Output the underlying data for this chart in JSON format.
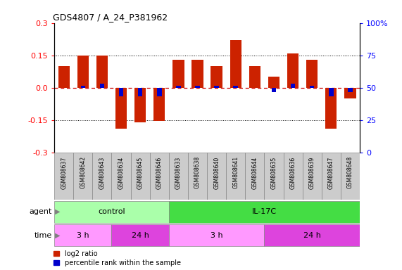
{
  "title": "GDS4807 / A_24_P381962",
  "samples": [
    "GSM808637",
    "GSM808642",
    "GSM808643",
    "GSM808634",
    "GSM808645",
    "GSM808646",
    "GSM808633",
    "GSM808638",
    "GSM808640",
    "GSM808641",
    "GSM808644",
    "GSM808635",
    "GSM808636",
    "GSM808639",
    "GSM808647",
    "GSM808648"
  ],
  "log2_ratio": [
    0.1,
    0.15,
    0.15,
    -0.19,
    -0.16,
    -0.155,
    0.13,
    0.13,
    0.1,
    0.22,
    0.1,
    0.05,
    0.16,
    0.13,
    -0.19,
    -0.05
  ],
  "pct_rank_offset": [
    0.0,
    0.01,
    0.02,
    -0.04,
    -0.04,
    -0.04,
    0.01,
    0.01,
    0.01,
    0.01,
    0.0,
    -0.02,
    0.02,
    0.01,
    -0.04,
    -0.02
  ],
  "agent_groups": [
    {
      "label": "control",
      "start": 0,
      "end": 6,
      "color": "#AAFFAA"
    },
    {
      "label": "IL-17C",
      "start": 6,
      "end": 16,
      "color": "#44DD44"
    }
  ],
  "time_groups": [
    {
      "label": "3 h",
      "start": 0,
      "end": 3,
      "color": "#FF99FF"
    },
    {
      "label": "24 h",
      "start": 3,
      "end": 6,
      "color": "#DD44DD"
    },
    {
      "label": "3 h",
      "start": 6,
      "end": 11,
      "color": "#FF99FF"
    },
    {
      "label": "24 h",
      "start": 11,
      "end": 16,
      "color": "#DD44DD"
    }
  ],
  "ylim": [
    -0.3,
    0.3
  ],
  "y2lim": [
    0,
    100
  ],
  "yticks": [
    -0.3,
    -0.15,
    0.0,
    0.15,
    0.3
  ],
  "y2ticks": [
    0,
    25,
    50,
    75,
    100
  ],
  "bar_color": "#CC2200",
  "pct_color": "#0000CC",
  "zero_line_color": "#CC0000",
  "grid_color": "black",
  "bar_width": 0.6,
  "label_bg": "#CCCCCC"
}
